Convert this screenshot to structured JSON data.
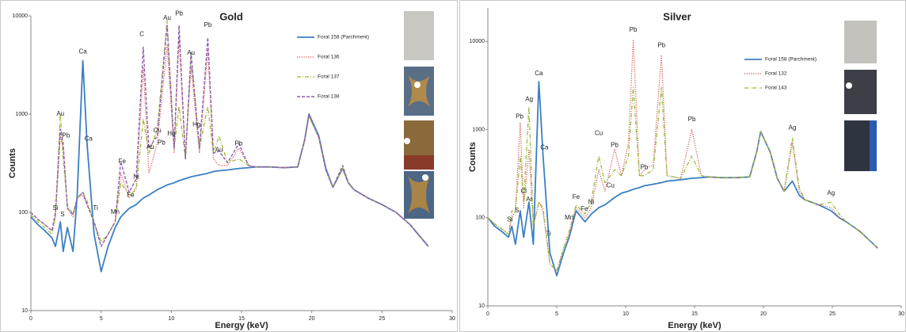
{
  "chart_data": [
    {
      "type": "line",
      "title": "Gold",
      "x_label": "Energy (keV)",
      "y_label": "Counts",
      "yscale": "log",
      "xlim": [
        0,
        30
      ],
      "xticks": [
        0,
        5,
        10,
        15,
        20,
        25,
        30
      ],
      "ylim": [
        10,
        10000
      ],
      "yticks": [
        10,
        100,
        1000,
        10000
      ],
      "x": [
        0,
        0.5,
        1,
        1.5,
        1.75,
        2.1,
        2.3,
        2.6,
        3,
        3.3,
        3.7,
        4.0,
        4.5,
        5,
        5.5,
        6,
        6.4,
        7,
        7.5,
        8.0,
        8.4,
        9,
        9.7,
        10.2,
        10.55,
        11,
        11.4,
        12,
        12.6,
        13,
        13.4,
        14,
        14.8,
        15.5,
        16,
        17,
        18,
        19,
        19.5,
        19.8,
        20.5,
        21,
        21.5,
        22.2,
        22.6,
        23,
        24,
        25,
        26,
        27,
        28.3
      ],
      "series": [
        {
          "name": "Foral 158 (Parchment)",
          "color": "#3b7fc4",
          "style": "solid",
          "values": [
            90,
            75,
            65,
            55,
            45,
            80,
            40,
            70,
            40,
            150,
            3500,
            500,
            60,
            25,
            45,
            70,
            90,
            110,
            120,
            140,
            150,
            170,
            190,
            200,
            210,
            220,
            230,
            240,
            250,
            260,
            265,
            270,
            280,
            285,
            290,
            290,
            285,
            290,
            550,
            1000,
            600,
            280,
            180,
            280,
            200,
            170,
            140,
            120,
            100,
            75,
            45
          ]
        },
        {
          "name": "Foral 136",
          "color": "#d9534f",
          "style": "dotted",
          "values": [
            100,
            85,
            75,
            65,
            90,
            600,
            450,
            110,
            90,
            140,
            150,
            120,
            80,
            45,
            60,
            80,
            250,
            140,
            180,
            3000,
            250,
            500,
            5000,
            400,
            6000,
            350,
            3000,
            400,
            4500,
            350,
            300,
            300,
            450,
            300,
            290,
            290,
            285,
            290,
            550,
            950,
            580,
            270,
            180,
            280,
            200,
            170,
            140,
            120,
            100,
            75,
            45
          ]
        },
        {
          "name": "Foral 137",
          "color": "#9bbb3c",
          "style": "dashdot",
          "values": [
            95,
            80,
            70,
            60,
            90,
            1000,
            350,
            120,
            95,
            140,
            160,
            130,
            80,
            50,
            60,
            80,
            200,
            150,
            170,
            900,
            400,
            700,
            9000,
            450,
            1200,
            350,
            4000,
            450,
            1200,
            400,
            600,
            320,
            350,
            300,
            290,
            290,
            285,
            290,
            550,
            950,
            580,
            270,
            180,
            280,
            200,
            170,
            140,
            120,
            100,
            75,
            45
          ]
        },
        {
          "name": "Foral 138",
          "color": "#8e5fb0",
          "style": "dashed",
          "values": [
            100,
            85,
            75,
            65,
            100,
            700,
            500,
            110,
            95,
            140,
            160,
            120,
            80,
            45,
            60,
            80,
            330,
            160,
            220,
            4800,
            450,
            600,
            8000,
            450,
            8000,
            350,
            4200,
            450,
            6000,
            400,
            420,
            320,
            500,
            300,
            290,
            290,
            285,
            290,
            550,
            1000,
            580,
            270,
            180,
            300,
            200,
            170,
            140,
            120,
            100,
            75,
            45
          ]
        }
      ],
      "annotations": [
        {
          "text": "Au",
          "x": 2.1,
          "y": 1000
        },
        {
          "text": "Pb",
          "x": 2.5,
          "y": 600
        },
        {
          "text": "Ca",
          "x": 3.7,
          "y": 4300
        },
        {
          "text": "Ca",
          "x": 4.1,
          "y": 560
        },
        {
          "text": "Si",
          "x": 1.75,
          "y": 110
        },
        {
          "text": "S",
          "x": 2.25,
          "y": 95
        },
        {
          "text": "Ti",
          "x": 4.6,
          "y": 110
        },
        {
          "text": "Mn",
          "x": 6.0,
          "y": 100
        },
        {
          "text": "Fe",
          "x": 6.5,
          "y": 330
        },
        {
          "text": "Fe",
          "x": 7.1,
          "y": 150
        },
        {
          "text": "Ni",
          "x": 7.5,
          "y": 230
        },
        {
          "text": "C",
          "x": 7.9,
          "y": 6500
        },
        {
          "text": "Au",
          "x": 8.5,
          "y": 460
        },
        {
          "text": "Cu",
          "x": 9.0,
          "y": 680
        },
        {
          "text": "Pb",
          "x": 9.3,
          "y": 510
        },
        {
          "text": "Au",
          "x": 9.7,
          "y": 9500
        },
        {
          "text": "Hg",
          "x": 10.0,
          "y": 630
        },
        {
          "text": "Pb",
          "x": 10.55,
          "y": 10500
        },
        {
          "text": "Au",
          "x": 11.4,
          "y": 4200
        },
        {
          "text": "Hg",
          "x": 11.8,
          "y": 780
        },
        {
          "text": "Pb",
          "x": 12.6,
          "y": 8000
        },
        {
          "text": "Au",
          "x": 13.4,
          "y": 430
        },
        {
          "text": "Pb",
          "x": 14.8,
          "y": 500
        }
      ]
    },
    {
      "type": "line",
      "title": "Silver",
      "x_label": "Energy (keV)",
      "y_label": "Counts",
      "yscale": "log",
      "xlim": [
        0,
        30
      ],
      "xticks": [
        0,
        5,
        10,
        15,
        20,
        25,
        30
      ],
      "ylim": [
        10,
        24000
      ],
      "yticks": [
        10,
        100,
        1000,
        10000
      ],
      "x": [
        0,
        0.5,
        1,
        1.5,
        1.74,
        2.0,
        2.35,
        2.6,
        2.98,
        3.3,
        3.7,
        4.0,
        4.5,
        5,
        5.5,
        5.9,
        6.4,
        7.05,
        7.5,
        8.05,
        8.5,
        9.2,
        9.7,
        10.2,
        10.55,
        11,
        11.35,
        12,
        12.6,
        13,
        14,
        14.8,
        15.5,
        16,
        17,
        18,
        19,
        19.5,
        19.8,
        20.5,
        21,
        21.5,
        22.1,
        22.6,
        23,
        24,
        24.9,
        25.5,
        26,
        27,
        28.3
      ],
      "series": [
        {
          "name": "Foral 158 (Parchment)",
          "color": "#3b7fc4",
          "style": "solid",
          "values": [
            100,
            80,
            70,
            60,
            80,
            50,
            120,
            60,
            150,
            50,
            3500,
            520,
            40,
            22,
            40,
            60,
            120,
            90,
            110,
            130,
            140,
            170,
            190,
            200,
            210,
            220,
            230,
            240,
            250,
            260,
            270,
            280,
            285,
            290,
            285,
            285,
            290,
            550,
            950,
            550,
            280,
            200,
            260,
            180,
            160,
            140,
            120,
            100,
            90,
            70,
            45
          ]
        },
        {
          "name": "Foral 132",
          "color": "#d9534f",
          "style": "dotted",
          "values": [
            100,
            85,
            75,
            65,
            100,
            120,
            1200,
            130,
            600,
            80,
            150,
            120,
            30,
            25,
            45,
            65,
            130,
            100,
            130,
            350,
            200,
            600,
            300,
            700,
            10500,
            300,
            350,
            400,
            7000,
            300,
            280,
            1000,
            300,
            290,
            285,
            285,
            290,
            550,
            950,
            550,
            280,
            200,
            700,
            200,
            160,
            140,
            130,
            100,
            90,
            70,
            45
          ]
        },
        {
          "name": "Foral 143",
          "color": "#9bbb3c",
          "style": "dashdot",
          "values": [
            100,
            85,
            75,
            65,
            120,
            120,
            500,
            150,
            1800,
            80,
            150,
            130,
            30,
            25,
            45,
            70,
            140,
            110,
            150,
            500,
            250,
            350,
            300,
            500,
            3000,
            300,
            300,
            350,
            3000,
            300,
            280,
            500,
            300,
            290,
            285,
            285,
            290,
            550,
            950,
            550,
            280,
            200,
            800,
            220,
            160,
            140,
            150,
            110,
            90,
            70,
            45
          ]
        }
      ],
      "annotations": [
        {
          "text": "Pb",
          "x": 2.3,
          "y": 1400
        },
        {
          "text": "Ag",
          "x": 3.0,
          "y": 2200
        },
        {
          "text": "Ca",
          "x": 3.7,
          "y": 4300
        },
        {
          "text": "Ca",
          "x": 4.1,
          "y": 620
        },
        {
          "text": "Si",
          "x": 1.6,
          "y": 95
        },
        {
          "text": "S",
          "x": 2.1,
          "y": 120
        },
        {
          "text": "Cl",
          "x": 2.6,
          "y": 200
        },
        {
          "text": "Ar",
          "x": 3.0,
          "y": 160
        },
        {
          "text": "Ti",
          "x": 4.4,
          "y": 65
        },
        {
          "text": "Mn",
          "x": 5.9,
          "y": 100
        },
        {
          "text": "Fe",
          "x": 6.4,
          "y": 170
        },
        {
          "text": "Fe",
          "x": 7.0,
          "y": 125
        },
        {
          "text": "Ni",
          "x": 7.5,
          "y": 150
        },
        {
          "text": "Cu",
          "x": 8.05,
          "y": 900
        },
        {
          "text": "Cu",
          "x": 8.9,
          "y": 230
        },
        {
          "text": "Pb",
          "x": 9.2,
          "y": 660
        },
        {
          "text": "Pb",
          "x": 10.55,
          "y": 13500
        },
        {
          "text": "Pb",
          "x": 11.35,
          "y": 370
        },
        {
          "text": "Pb",
          "x": 12.6,
          "y": 9000
        },
        {
          "text": "Pb",
          "x": 14.8,
          "y": 1300
        },
        {
          "text": "Ag",
          "x": 22.1,
          "y": 1050
        },
        {
          "text": "Ag",
          "x": 24.9,
          "y": 190
        }
      ]
    }
  ]
}
